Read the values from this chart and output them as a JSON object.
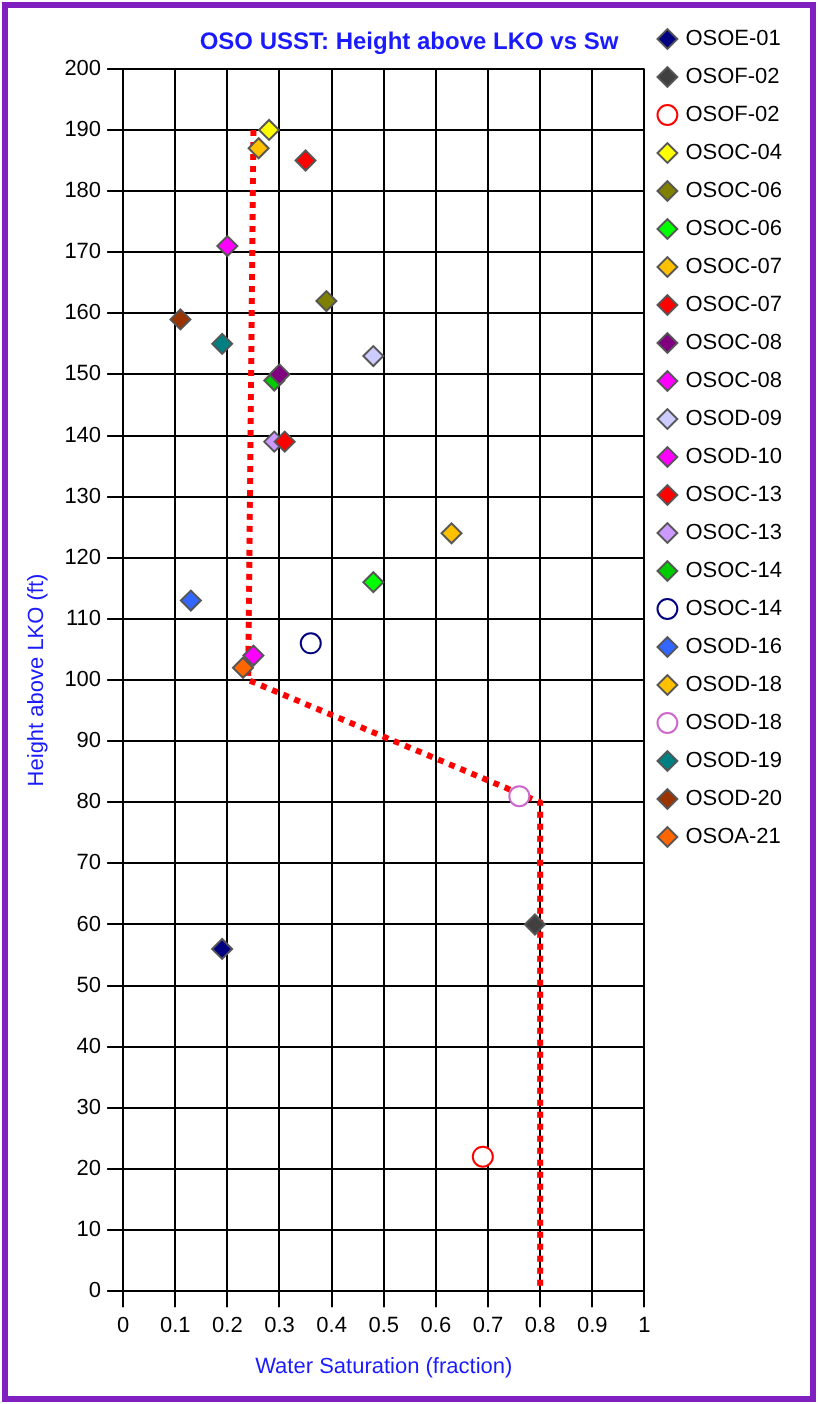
{
  "chart_data": {
    "type": "scatter",
    "title": "OSO USST: Height above LKO vs Sw",
    "xlabel": "Water Saturation (fraction)",
    "ylabel": "Height above LKO (ft)",
    "xlim": [
      0,
      1
    ],
    "xticks": [
      0,
      0.1,
      0.2,
      0.3,
      0.4,
      0.5,
      0.6,
      0.7,
      0.8,
      0.9,
      1
    ],
    "ylim": [
      0,
      200
    ],
    "yticks": [
      0,
      10,
      20,
      30,
      40,
      50,
      60,
      70,
      80,
      90,
      100,
      110,
      120,
      130,
      140,
      150,
      160,
      170,
      180,
      190,
      200
    ],
    "grid": true,
    "legend": "right",
    "marker": "diamond",
    "series": [
      {
        "name": "OSOE-01",
        "color": "#000080",
        "x": [
          0.19
        ],
        "values": [
          56
        ]
      },
      {
        "name": "OSOF-02",
        "color": "#404040",
        "x": [
          0.79
        ],
        "values": [
          60
        ]
      },
      {
        "name": "OSOF-02",
        "color": "#ff0000",
        "marker": "circle",
        "x": [
          0.69
        ],
        "values": [
          22
        ]
      },
      {
        "name": "OSOC-04",
        "color": "#ffff00",
        "x": [
          0.28
        ],
        "values": [
          190
        ]
      },
      {
        "name": "OSOC-06",
        "color": "#808000",
        "x": [
          0.39
        ],
        "values": [
          162
        ]
      },
      {
        "name": "OSOC-06",
        "color": "#00ff00",
        "x": [
          0.48
        ],
        "values": [
          116
        ]
      },
      {
        "name": "OSOC-07",
        "color": "#ffc000",
        "x": [
          0.26
        ],
        "values": [
          187
        ]
      },
      {
        "name": "OSOC-07",
        "color": "#ff0000",
        "x": [
          0.35
        ],
        "values": [
          185
        ]
      },
      {
        "name": "OSOC-08",
        "color": "#800080",
        "x": [
          0.3
        ],
        "values": [
          150
        ]
      },
      {
        "name": "OSOC-08",
        "color": "#ff00ff",
        "x": [
          0.2
        ],
        "values": [
          171
        ]
      },
      {
        "name": "OSOD-09",
        "color": "#ccccff",
        "x": [
          0.48
        ],
        "values": [
          153
        ]
      },
      {
        "name": "OSOD-10",
        "color": "#ff00ff",
        "x": [
          0.25
        ],
        "values": [
          104
        ]
      },
      {
        "name": "OSOC-13",
        "color": "#ff0000",
        "x": [
          0.31
        ],
        "values": [
          139
        ]
      },
      {
        "name": "OSOC-13",
        "color": "#cc99ff",
        "x": [
          0.29
        ],
        "values": [
          139
        ]
      },
      {
        "name": "OSOC-14",
        "color": "#00cc00",
        "x": [
          0.29
        ],
        "values": [
          149
        ]
      },
      {
        "name": "OSOC-14",
        "color": "#000080",
        "marker": "circle",
        "x": [
          0.36
        ],
        "values": [
          106
        ]
      },
      {
        "name": "OSOD-16",
        "color": "#3366ff",
        "x": [
          0.13
        ],
        "values": [
          113
        ]
      },
      {
        "name": "OSOD-18",
        "color": "#ffc000",
        "x": [
          0.63
        ],
        "values": [
          124
        ]
      },
      {
        "name": "OSOD-18",
        "color": "#cc66cc",
        "marker": "circle",
        "x": [
          0.76
        ],
        "values": [
          81
        ]
      },
      {
        "name": "OSOD-19",
        "color": "#008080",
        "x": [
          0.19
        ],
        "values": [
          155
        ]
      },
      {
        "name": "OSOD-20",
        "color": "#993300",
        "x": [
          0.11
        ],
        "values": [
          159
        ]
      },
      {
        "name": "OSOA-21",
        "color": "#ff6600",
        "x": [
          0.23
        ],
        "values": [
          102
        ]
      },
      {
        "type": "line",
        "color": "#ff0000",
        "line_style": "dotted",
        "marker": "none",
        "x": [
          0.25,
          0.24,
          0.8,
          0.8
        ],
        "values": [
          190,
          100,
          80,
          0
        ]
      }
    ]
  }
}
